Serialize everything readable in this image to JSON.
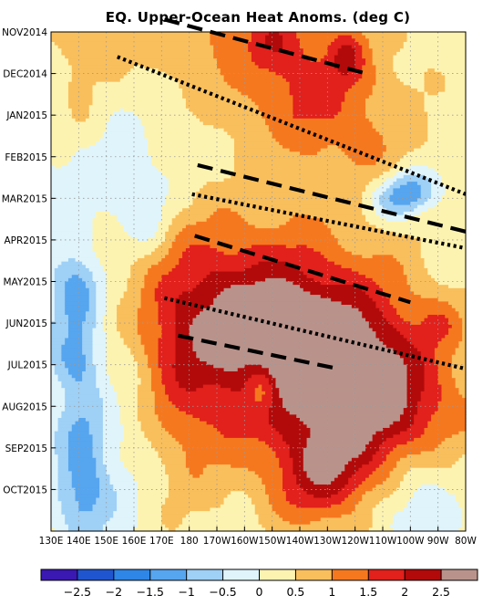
{
  "chart_data": {
    "type": "heatmap",
    "title": "EQ. Upper-Ocean Heat Anoms. (deg C)",
    "xlabel": "",
    "ylabel": "",
    "x_ticks": [
      "130E",
      "140E",
      "150E",
      "160E",
      "170E",
      "180",
      "170W",
      "160W",
      "150W",
      "140W",
      "130W",
      "120W",
      "110W",
      "100W",
      "90W",
      "80W"
    ],
    "x_range": [
      "130E",
      "80W"
    ],
    "y_ticks": [
      "NOV2014",
      "DEC2014",
      "JAN2015",
      "FEB2015",
      "MAR2015",
      "APR2015",
      "MAY2015",
      "JUN2015",
      "JUL2015",
      "AUG2015",
      "SEP2015",
      "OCT2015"
    ],
    "y_range": [
      "OCT2014",
      "OCT2015"
    ],
    "y_direction": "time increases downward",
    "grid": true,
    "colorbar": {
      "orientation": "horizontal",
      "placement": "bottom",
      "tick_labels": [
        "−2.5",
        "−2",
        "−1.5",
        "−1",
        "−0.5",
        "0",
        "0.5",
        "1",
        "1.5",
        "2",
        "2.5"
      ],
      "levels": [
        -2.5,
        -2,
        -1.5,
        -1,
        -0.5,
        0,
        0.5,
        1,
        1.5,
        2,
        2.5
      ],
      "colors": [
        "#3a18b2",
        "#1f55cf",
        "#2e86e6",
        "#56a5ef",
        "#9fd0f6",
        "#dff4fb",
        "#fdf3b1",
        "#f9bf5c",
        "#f6781e",
        "#e2201c",
        "#b20a0a",
        "#b9938b"
      ]
    },
    "annotations": [
      {
        "style": "dashed",
        "start": [
          "171E",
          "NOV2014"
        ],
        "end": [
          "116W",
          "DEC2014"
        ]
      },
      {
        "style": "dotted",
        "start": [
          "154E",
          "DEC2014"
        ],
        "end": [
          "80W",
          "FEB2015"
        ]
      },
      {
        "style": "dashed",
        "start": [
          "177W",
          "MAR2015"
        ],
        "end": [
          "80W",
          "MAY2015"
        ]
      },
      {
        "style": "dotted",
        "start": [
          "179W",
          "APR2015"
        ],
        "end": [
          "80W",
          "MAY2015"
        ]
      },
      {
        "style": "dashed",
        "start": [
          "178W",
          "MAY2015"
        ],
        "end": [
          "100W",
          "JUN2015"
        ]
      },
      {
        "style": "dotted",
        "start": [
          "171E",
          "JUN2015"
        ],
        "end": [
          "80W",
          "JUL2015"
        ]
      },
      {
        "style": "dashed",
        "start": [
          "176E",
          "JUL2015"
        ],
        "end": [
          "126W",
          "AUG2015"
        ]
      }
    ],
    "anomaly_sketch": {
      "blobs": [
        {
          "lon": 185,
          "t": -0.5,
          "rx": 70,
          "ry": 2.2,
          "a": 0.9,
          "angle": 0.35
        },
        {
          "lon": 225,
          "t": 1.6,
          "rx": 28,
          "ry": 1.7,
          "a": 1.15,
          "angle": 0.3
        },
        {
          "lon": 237,
          "t": 0.6,
          "rx": 6,
          "ry": 0.6,
          "a": 1.0,
          "angle": 0.0
        },
        {
          "lon": 211,
          "t": 0.2,
          "rx": 9,
          "ry": 0.7,
          "a": 0.6,
          "angle": 0.0
        },
        {
          "lon": 140,
          "t": 1.2,
          "rx": 9,
          "ry": 2.4,
          "a": 0.5,
          "angle": 0.0
        },
        {
          "lon": 250,
          "t": 3.2,
          "rx": 25,
          "ry": 1.3,
          "a": 0.35,
          "angle": 0.0
        },
        {
          "lon": 258,
          "t": 3.9,
          "rx": 11,
          "ry": 0.55,
          "a": -1.9,
          "angle": -0.3
        },
        {
          "lon": 175,
          "t": 8.3,
          "rx": 20,
          "ry": 3.4,
          "a": 0.9,
          "angle": 0.0
        },
        {
          "lon": 150,
          "t": 5.3,
          "rx": 10,
          "ry": 0.7,
          "a": 0.5,
          "angle": 0.0
        },
        {
          "lon": 205,
          "t": 6.6,
          "rx": 48,
          "ry": 2.3,
          "a": 1.75,
          "angle": 0.13
        },
        {
          "lon": 232,
          "t": 8.6,
          "rx": 45,
          "ry": 2.5,
          "a": 1.7,
          "angle": 0.1
        },
        {
          "lon": 242,
          "t": 9.4,
          "rx": 30,
          "ry": 2.3,
          "a": 0.9,
          "angle": 0.0
        },
        {
          "lon": 212,
          "t": 7.2,
          "rx": 26,
          "ry": 1.1,
          "a": 0.7,
          "angle": 0.15
        },
        {
          "lon": 238,
          "t": 8.2,
          "rx": 22,
          "ry": 1.0,
          "a": 0.6,
          "angle": 0.15
        },
        {
          "lon": 262,
          "t": 9.4,
          "rx": 16,
          "ry": 1.0,
          "a": 0.6,
          "angle": 0.0
        },
        {
          "lon": 271,
          "t": 7.0,
          "rx": 8,
          "ry": 0.55,
          "a": 0.55,
          "angle": 0.0
        },
        {
          "lon": 223,
          "t": 11.0,
          "rx": 14,
          "ry": 1.1,
          "a": 0.7,
          "angle": 0.0
        },
        {
          "lon": 232,
          "t": 10.6,
          "rx": 12,
          "ry": 0.9,
          "a": 0.6,
          "angle": 0.0
        },
        {
          "lon": 206,
          "t": 8.6,
          "rx": 6,
          "ry": 0.6,
          "a": -1.2,
          "angle": 0.0
        },
        {
          "lon": 140,
          "t": 6.2,
          "rx": 8,
          "ry": 0.9,
          "a": -1.0,
          "angle": 0.0
        },
        {
          "lon": 140,
          "t": 7.8,
          "rx": 8,
          "ry": 0.8,
          "a": -1.0,
          "angle": 0.0
        },
        {
          "lon": 142,
          "t": 9.9,
          "rx": 8,
          "ry": 1.4,
          "a": -1.0,
          "angle": 0.0
        },
        {
          "lon": 143,
          "t": 11.3,
          "rx": 10,
          "ry": 1.0,
          "a": -0.9,
          "angle": 0.0
        },
        {
          "lon": 147,
          "t": 5.0,
          "rx": 28,
          "ry": 3.2,
          "a": -0.6,
          "angle": 0.0
        },
        {
          "lon": 135,
          "t": 8.6,
          "rx": 9,
          "ry": 3.5,
          "a": -0.3,
          "angle": 0.0
        },
        {
          "lon": 160,
          "t": 9.5,
          "rx": 12,
          "ry": 2.5,
          "a": -0.5,
          "angle": 0.0
        },
        {
          "lon": 165,
          "t": 4.5,
          "rx": 9,
          "ry": 1.0,
          "a": -0.6,
          "angle": 0.0
        },
        {
          "lon": 263,
          "t": 10.6,
          "rx": 14,
          "ry": 1.5,
          "a": -0.9,
          "angle": 0.0
        },
        {
          "lon": 255,
          "t": 11.6,
          "rx": 18,
          "ry": 0.8,
          "a": -0.4,
          "angle": 0.0
        }
      ]
    }
  }
}
